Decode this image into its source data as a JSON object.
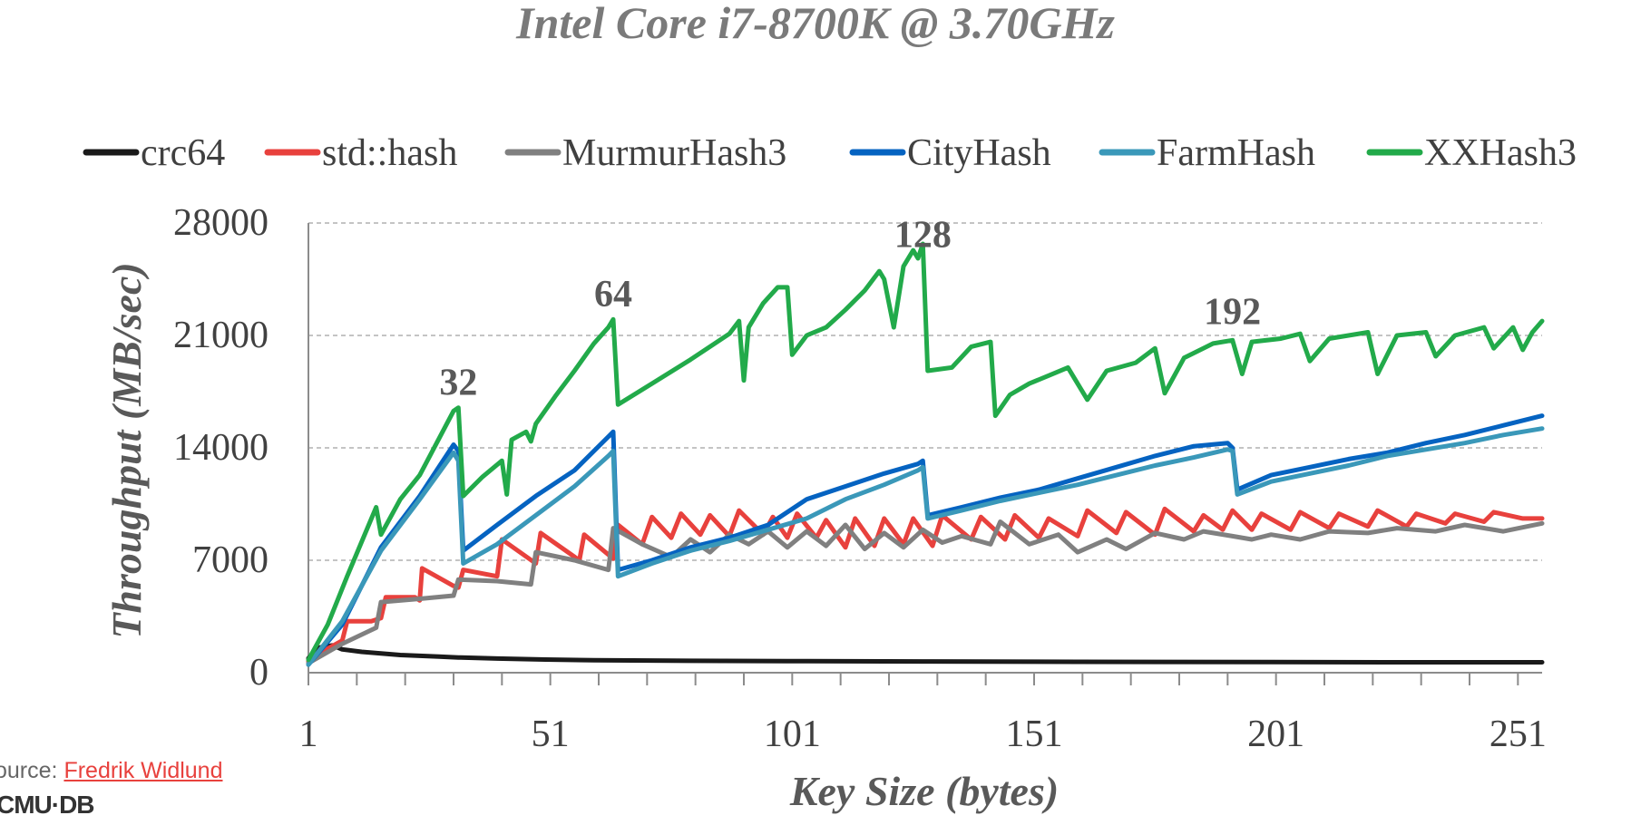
{
  "chart_data": {
    "type": "line",
    "title": "Intel Core i7-8700K @ 3.70GHz",
    "xlabel": "Key Size (bytes)",
    "ylabel": "Throughput (MB/sec)",
    "xlim": [
      1,
      256
    ],
    "ylim": [
      0,
      28000
    ],
    "x_ticks": [
      1,
      51,
      101,
      151,
      201,
      251
    ],
    "y_ticks": [
      0,
      7000,
      14000,
      21000,
      28000
    ],
    "grid": "horizontal dashed",
    "legend": "top",
    "annotations": [
      {
        "text": "32",
        "x": 32,
        "y": 17300
      },
      {
        "text": "64",
        "x": 64,
        "y": 22800
      },
      {
        "text": "128",
        "x": 128,
        "y": 26500
      },
      {
        "text": "192",
        "x": 192,
        "y": 21700
      }
    ],
    "series": [
      {
        "name": "crc64",
        "color": "#1a1a1a",
        "points": [
          [
            1,
            900
          ],
          [
            3,
            1550
          ],
          [
            6,
            1700
          ],
          [
            8,
            1450
          ],
          [
            12,
            1300
          ],
          [
            16,
            1200
          ],
          [
            20,
            1100
          ],
          [
            24,
            1050
          ],
          [
            28,
            1000
          ],
          [
            32,
            950
          ],
          [
            40,
            880
          ],
          [
            50,
            820
          ],
          [
            60,
            780
          ],
          [
            80,
            740
          ],
          [
            100,
            720
          ],
          [
            130,
            700
          ],
          [
            160,
            680
          ],
          [
            200,
            660
          ],
          [
            230,
            650
          ],
          [
            256,
            650
          ]
        ]
      },
      {
        "name": "std::hash",
        "color": "#e8413d",
        "points": [
          [
            1,
            700
          ],
          [
            5,
            1500
          ],
          [
            8,
            2000
          ],
          [
            9,
            3200
          ],
          [
            14,
            3200
          ],
          [
            16,
            3400
          ],
          [
            17,
            4700
          ],
          [
            23,
            4700
          ],
          [
            24,
            4500
          ],
          [
            24.5,
            6500
          ],
          [
            31,
            5400
          ],
          [
            32,
            5300
          ],
          [
            33,
            6400
          ],
          [
            40,
            6000
          ],
          [
            41,
            8300
          ],
          [
            48,
            6800
          ],
          [
            49,
            8700
          ],
          [
            57,
            7000
          ],
          [
            58,
            8600
          ],
          [
            64,
            7100
          ],
          [
            65,
            9200
          ],
          [
            70,
            8000
          ],
          [
            72,
            9700
          ],
          [
            76,
            8400
          ],
          [
            78,
            9900
          ],
          [
            82,
            8600
          ],
          [
            84,
            9800
          ],
          [
            88,
            8500
          ],
          [
            90,
            10100
          ],
          [
            95,
            8600
          ],
          [
            97,
            9700
          ],
          [
            100,
            8400
          ],
          [
            102,
            9900
          ],
          [
            106,
            8400
          ],
          [
            108,
            9500
          ],
          [
            112,
            7800
          ],
          [
            114,
            9600
          ],
          [
            118,
            7900
          ],
          [
            120,
            9600
          ],
          [
            124,
            8000
          ],
          [
            126,
            9600
          ],
          [
            130,
            7900
          ],
          [
            132,
            9800
          ],
          [
            138,
            8300
          ],
          [
            140,
            9700
          ],
          [
            145,
            8300
          ],
          [
            147,
            9800
          ],
          [
            152,
            8400
          ],
          [
            154,
            9600
          ],
          [
            160,
            8500
          ],
          [
            162,
            10100
          ],
          [
            168,
            8700
          ],
          [
            170,
            10000
          ],
          [
            176,
            8600
          ],
          [
            178,
            10200
          ],
          [
            184,
            8800
          ],
          [
            186,
            9800
          ],
          [
            190,
            8900
          ],
          [
            192,
            10100
          ],
          [
            196,
            8900
          ],
          [
            198,
            9900
          ],
          [
            204,
            8900
          ],
          [
            206,
            10000
          ],
          [
            212,
            9000
          ],
          [
            214,
            9900
          ],
          [
            220,
            9100
          ],
          [
            222,
            10100
          ],
          [
            228,
            9100
          ],
          [
            230,
            9900
          ],
          [
            236,
            9300
          ],
          [
            238,
            9900
          ],
          [
            244,
            9400
          ],
          [
            246,
            10000
          ],
          [
            252,
            9600
          ],
          [
            256,
            9600
          ]
        ]
      },
      {
        "name": "MurmurHash3",
        "color": "#808080",
        "points": [
          [
            1,
            600
          ],
          [
            8,
            1800
          ],
          [
            15,
            2800
          ],
          [
            16,
            4400
          ],
          [
            24,
            4600
          ],
          [
            31,
            4800
          ],
          [
            32,
            5800
          ],
          [
            40,
            5700
          ],
          [
            47,
            5500
          ],
          [
            48,
            7500
          ],
          [
            56,
            7000
          ],
          [
            63,
            6400
          ],
          [
            64,
            9000
          ],
          [
            70,
            8000
          ],
          [
            76,
            7200
          ],
          [
            80,
            8300
          ],
          [
            84,
            7500
          ],
          [
            88,
            8600
          ],
          [
            92,
            8000
          ],
          [
            96,
            8800
          ],
          [
            100,
            7800
          ],
          [
            104,
            8800
          ],
          [
            108,
            7900
          ],
          [
            112,
            9200
          ],
          [
            116,
            7700
          ],
          [
            120,
            8700
          ],
          [
            124,
            7800
          ],
          [
            128,
            8900
          ],
          [
            132,
            8100
          ],
          [
            136,
            8500
          ],
          [
            142,
            8000
          ],
          [
            144,
            9400
          ],
          [
            150,
            8000
          ],
          [
            156,
            8600
          ],
          [
            160,
            7500
          ],
          [
            166,
            8300
          ],
          [
            170,
            7700
          ],
          [
            176,
            8700
          ],
          [
            182,
            8300
          ],
          [
            186,
            8800
          ],
          [
            192,
            8500
          ],
          [
            196,
            8300
          ],
          [
            200,
            8600
          ],
          [
            206,
            8300
          ],
          [
            212,
            8800
          ],
          [
            220,
            8700
          ],
          [
            226,
            9000
          ],
          [
            234,
            8800
          ],
          [
            240,
            9200
          ],
          [
            248,
            8800
          ],
          [
            256,
            9300
          ]
        ]
      },
      {
        "name": "CityHash",
        "color": "#0563c1",
        "points": [
          [
            1,
            500
          ],
          [
            8,
            3000
          ],
          [
            16,
            7800
          ],
          [
            24,
            11000
          ],
          [
            31,
            14200
          ],
          [
            32,
            13800
          ],
          [
            33,
            7600
          ],
          [
            40,
            9200
          ],
          [
            48,
            11000
          ],
          [
            56,
            12600
          ],
          [
            63,
            14700
          ],
          [
            64,
            15000
          ],
          [
            65,
            6400
          ],
          [
            72,
            7000
          ],
          [
            80,
            7800
          ],
          [
            88,
            8400
          ],
          [
            96,
            9200
          ],
          [
            104,
            10800
          ],
          [
            112,
            11600
          ],
          [
            120,
            12400
          ],
          [
            127,
            13000
          ],
          [
            128,
            13200
          ],
          [
            129,
            9800
          ],
          [
            136,
            10300
          ],
          [
            144,
            10900
          ],
          [
            152,
            11400
          ],
          [
            160,
            12100
          ],
          [
            168,
            12800
          ],
          [
            176,
            13500
          ],
          [
            184,
            14100
          ],
          [
            191,
            14300
          ],
          [
            192,
            14000
          ],
          [
            193,
            11400
          ],
          [
            200,
            12300
          ],
          [
            208,
            12800
          ],
          [
            216,
            13300
          ],
          [
            224,
            13700
          ],
          [
            232,
            14300
          ],
          [
            240,
            14800
          ],
          [
            248,
            15400
          ],
          [
            256,
            16000
          ]
        ]
      },
      {
        "name": "FarmHash",
        "color": "#3a98b9",
        "points": [
          [
            1,
            500
          ],
          [
            8,
            3200
          ],
          [
            16,
            7600
          ],
          [
            24,
            10800
          ],
          [
            31,
            13700
          ],
          [
            32,
            13200
          ],
          [
            33,
            6800
          ],
          [
            40,
            8000
          ],
          [
            48,
            9800
          ],
          [
            56,
            11600
          ],
          [
            63,
            13500
          ],
          [
            64,
            13800
          ],
          [
            65,
            6000
          ],
          [
            72,
            6800
          ],
          [
            80,
            7600
          ],
          [
            88,
            8200
          ],
          [
            96,
            8900
          ],
          [
            104,
            9600
          ],
          [
            112,
            10800
          ],
          [
            120,
            11700
          ],
          [
            127,
            12600
          ],
          [
            128,
            12800
          ],
          [
            129,
            9600
          ],
          [
            136,
            10100
          ],
          [
            144,
            10700
          ],
          [
            152,
            11200
          ],
          [
            160,
            11700
          ],
          [
            168,
            12300
          ],
          [
            176,
            12900
          ],
          [
            184,
            13400
          ],
          [
            191,
            13900
          ],
          [
            192,
            13800
          ],
          [
            193,
            11100
          ],
          [
            200,
            11900
          ],
          [
            208,
            12400
          ],
          [
            216,
            12900
          ],
          [
            224,
            13500
          ],
          [
            232,
            13900
          ],
          [
            240,
            14300
          ],
          [
            248,
            14800
          ],
          [
            256,
            15200
          ]
        ]
      },
      {
        "name": "XXHash3",
        "color": "#22aa4a",
        "points": [
          [
            1,
            800
          ],
          [
            5,
            3000
          ],
          [
            9,
            6000
          ],
          [
            15,
            10300
          ],
          [
            16,
            8600
          ],
          [
            20,
            10800
          ],
          [
            24,
            12300
          ],
          [
            31,
            16300
          ],
          [
            32,
            16500
          ],
          [
            33,
            11000
          ],
          [
            37,
            12200
          ],
          [
            41,
            13200
          ],
          [
            42,
            11100
          ],
          [
            43,
            14500
          ],
          [
            46,
            15000
          ],
          [
            47,
            14400
          ],
          [
            48,
            15500
          ],
          [
            52,
            17200
          ],
          [
            56,
            18800
          ],
          [
            60,
            20500
          ],
          [
            63,
            21500
          ],
          [
            64,
            22000
          ],
          [
            65,
            16700
          ],
          [
            72,
            18000
          ],
          [
            80,
            19500
          ],
          [
            88,
            21100
          ],
          [
            90,
            21900
          ],
          [
            91,
            18200
          ],
          [
            92,
            21500
          ],
          [
            95,
            23000
          ],
          [
            98,
            24000
          ],
          [
            100,
            24000
          ],
          [
            101,
            19800
          ],
          [
            104,
            21000
          ],
          [
            108,
            21500
          ],
          [
            112,
            22600
          ],
          [
            116,
            23800
          ],
          [
            119,
            25000
          ],
          [
            120,
            24500
          ],
          [
            122,
            21500
          ],
          [
            124,
            25300
          ],
          [
            126,
            26300
          ],
          [
            127,
            25800
          ],
          [
            128,
            26700
          ],
          [
            129,
            18800
          ],
          [
            134,
            19000
          ],
          [
            138,
            20300
          ],
          [
            142,
            20600
          ],
          [
            143,
            16000
          ],
          [
            146,
            17300
          ],
          [
            150,
            18000
          ],
          [
            154,
            18500
          ],
          [
            158,
            19000
          ],
          [
            162,
            17000
          ],
          [
            166,
            18800
          ],
          [
            172,
            19300
          ],
          [
            176,
            20200
          ],
          [
            178,
            17400
          ],
          [
            182,
            19600
          ],
          [
            188,
            20500
          ],
          [
            192,
            20700
          ],
          [
            194,
            18600
          ],
          [
            196,
            20600
          ],
          [
            202,
            20800
          ],
          [
            206,
            21100
          ],
          [
            208,
            19400
          ],
          [
            212,
            20800
          ],
          [
            220,
            21200
          ],
          [
            222,
            18600
          ],
          [
            226,
            21000
          ],
          [
            232,
            21200
          ],
          [
            234,
            19700
          ],
          [
            238,
            21000
          ],
          [
            244,
            21500
          ],
          [
            246,
            20200
          ],
          [
            250,
            21500
          ],
          [
            252,
            20100
          ],
          [
            254,
            21200
          ],
          [
            256,
            21900
          ]
        ]
      }
    ]
  },
  "footer": {
    "source_prefix": "ource: ",
    "source_link": "Fredrik Widlund",
    "logo": "CMU·DB"
  }
}
